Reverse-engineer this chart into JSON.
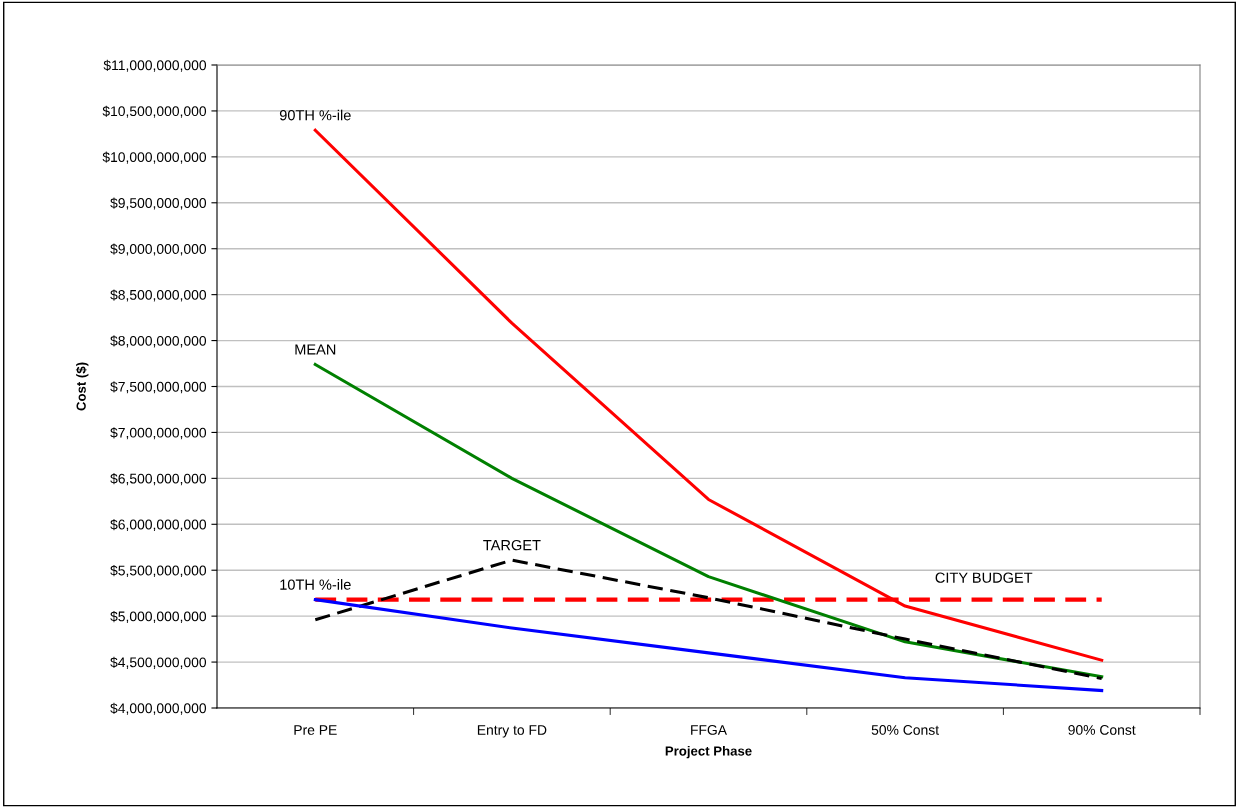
{
  "chart_data": {
    "type": "line",
    "xlabel": "Project Phase",
    "ylabel": "Cost ($)",
    "categories": [
      "Pre PE",
      "Entry to FD",
      "FFGA",
      "50% Const",
      "90% Const"
    ],
    "series": [
      {
        "name": "90TH %-ile",
        "color": "#ff0000",
        "values": [
          10290000000,
          8190000000,
          6270000000,
          5110000000,
          4520000000
        ],
        "line_style": "solid"
      },
      {
        "name": "MEAN",
        "color": "#008000",
        "values": [
          7740000000,
          6500000000,
          5430000000,
          4720000000,
          4340000000
        ],
        "line_style": "solid"
      },
      {
        "name": "TARGET",
        "color": "#000000",
        "values": [
          4960000000,
          5610000000,
          5200000000,
          4750000000,
          4320000000
        ],
        "line_style": "dashed"
      },
      {
        "name": "10TH %-ile",
        "color": "#0000ff",
        "values": [
          5180000000,
          4870000000,
          4600000000,
          4330000000,
          4190000000
        ],
        "line_style": "solid"
      }
    ],
    "ref_lines": [
      {
        "axis": "y",
        "value": 5180000000,
        "label": "CITY BUDGET",
        "color": "#ff0000",
        "line_style": "dashed"
      }
    ],
    "ylim": [
      4000000000,
      11000000000
    ],
    "yticks": [
      {
        "value": 4000000000,
        "label": "$4,000,000,000"
      },
      {
        "value": 4500000000,
        "label": "$4,500,000,000"
      },
      {
        "value": 5000000000,
        "label": "$5,000,000,000"
      },
      {
        "value": 5500000000,
        "label": "$5,500,000,000"
      },
      {
        "value": 6000000000,
        "label": "$6,000,000,000"
      },
      {
        "value": 6500000000,
        "label": "$6,500,000,000"
      },
      {
        "value": 7000000000,
        "label": "$7,000,000,000"
      },
      {
        "value": 7500000000,
        "label": "$7,500,000,000"
      },
      {
        "value": 8000000000,
        "label": "$8,000,000,000"
      },
      {
        "value": 8500000000,
        "label": "$8,500,000,000"
      },
      {
        "value": 9000000000,
        "label": "$9,000,000,000"
      },
      {
        "value": 9500000000,
        "label": "$9,500,000,000"
      },
      {
        "value": 10000000000,
        "label": "$10,000,000,000"
      },
      {
        "value": 10500000000,
        "label": "$10,500,000,000"
      },
      {
        "value": 11000000000,
        "label": "$11,000,000,000"
      }
    ],
    "grid": "y",
    "legend": false,
    "marker": "none"
  }
}
